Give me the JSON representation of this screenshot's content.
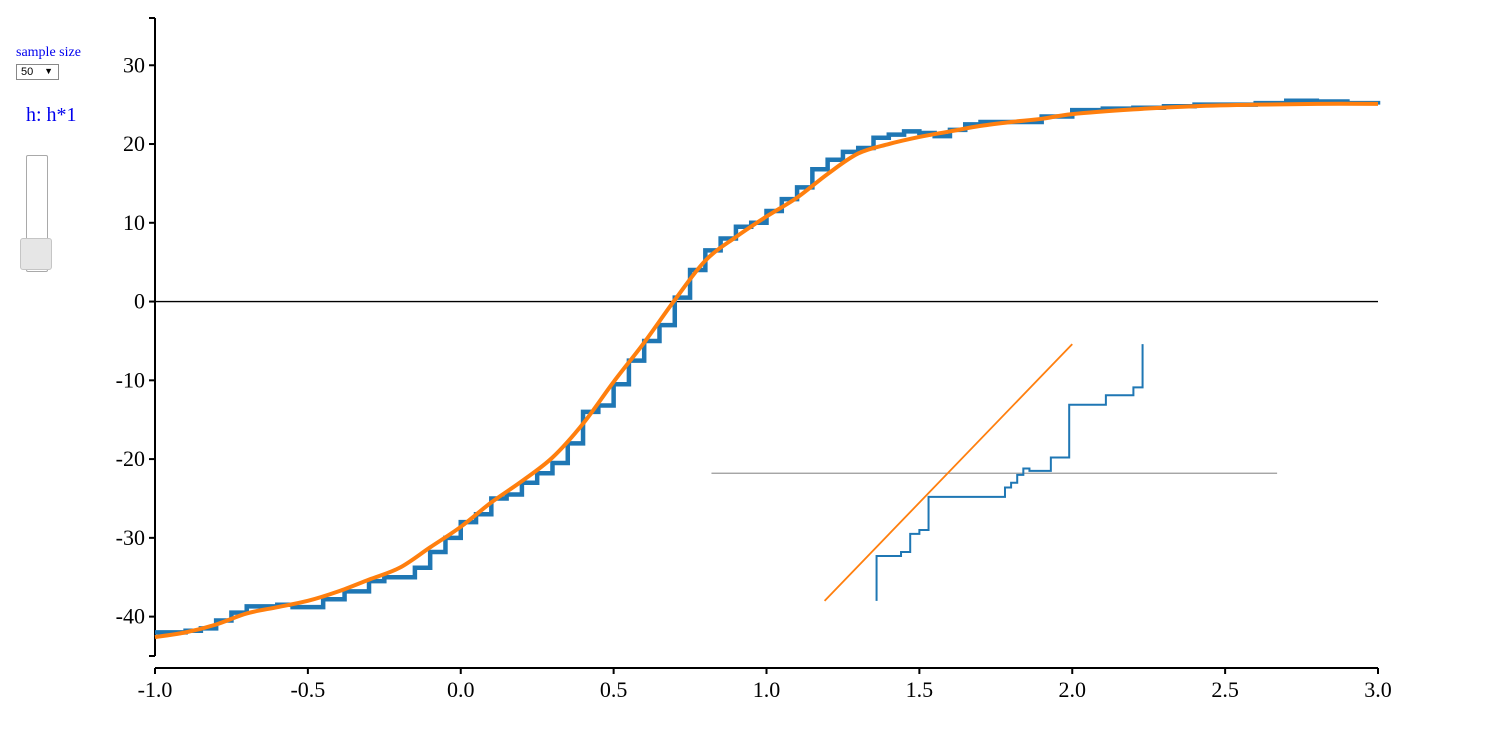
{
  "controls": {
    "sample_size_label": "sample size",
    "sample_size_value": "50",
    "sample_size_caret": "▼",
    "bandwidth_label": "h: h*1",
    "bandwidth_slider_level": 0.0
  },
  "chart_data": {
    "type": "line",
    "xlim": [
      -1.0,
      3.0
    ],
    "ylim": [
      -45,
      36
    ],
    "x_ticks": [
      "-1.0",
      "-0.5",
      "0.0",
      "0.5",
      "1.0",
      "1.5",
      "2.0",
      "2.5",
      "3.0"
    ],
    "y_ticks": [
      "30",
      "20",
      "10",
      "0",
      "-10",
      "-20",
      "-30",
      "-40"
    ],
    "zero_line": true,
    "grid": false,
    "colors": {
      "step": "#1f77b4",
      "smooth": "#ff7f0e",
      "axis": "#000000",
      "inset_baseline": "#999999"
    },
    "series": [
      {
        "kind": "step",
        "x": [
          -1.0,
          -0.9,
          -0.85,
          -0.8,
          -0.75,
          -0.7,
          -0.6,
          -0.55,
          -0.45,
          -0.38,
          -0.3,
          -0.25,
          -0.15,
          -0.1,
          -0.05,
          0.0,
          0.05,
          0.1,
          0.15,
          0.2,
          0.25,
          0.3,
          0.35,
          0.4,
          0.45,
          0.5,
          0.55,
          0.6,
          0.65,
          0.7,
          0.75,
          0.8,
          0.85,
          0.9,
          0.95,
          1.0,
          1.05,
          1.1,
          1.15,
          1.2,
          1.25,
          1.3,
          1.35,
          1.4,
          1.45,
          1.5,
          1.55,
          1.6,
          1.65,
          1.7,
          1.75,
          1.8,
          1.9,
          2.0,
          2.1,
          2.2,
          2.3,
          2.4,
          2.5,
          2.6,
          2.7,
          2.8,
          2.9,
          3.0
        ],
        "y": [
          -42.0,
          -41.8,
          -41.5,
          -40.5,
          -39.5,
          -38.7,
          -38.5,
          -38.8,
          -37.8,
          -36.8,
          -35.5,
          -35.0,
          -33.8,
          -31.8,
          -30.0,
          -28.0,
          -27.0,
          -25.0,
          -24.5,
          -23.0,
          -21.8,
          -20.5,
          -18.0,
          -14.0,
          -13.2,
          -10.5,
          -7.5,
          -5.0,
          -3.0,
          0.5,
          4.0,
          6.5,
          8.0,
          9.5,
          10.0,
          11.5,
          13.0,
          14.5,
          16.8,
          18.0,
          19.0,
          19.5,
          20.8,
          21.2,
          21.6,
          21.4,
          21.0,
          21.8,
          22.5,
          22.8,
          22.8,
          22.8,
          23.5,
          24.3,
          24.5,
          24.6,
          24.8,
          25.0,
          25.0,
          25.2,
          25.5,
          25.4,
          25.2,
          25.0
        ]
      },
      {
        "kind": "smooth",
        "x": [
          -1.0,
          -0.9,
          -0.8,
          -0.7,
          -0.6,
          -0.5,
          -0.4,
          -0.3,
          -0.2,
          -0.1,
          0.0,
          0.1,
          0.2,
          0.3,
          0.4,
          0.5,
          0.6,
          0.7,
          0.8,
          0.9,
          1.0,
          1.1,
          1.2,
          1.3,
          1.4,
          1.5,
          1.6,
          1.7,
          1.8,
          1.9,
          2.0,
          2.2,
          2.4,
          2.6,
          2.8,
          3.0
        ],
        "y": [
          -42.6,
          -42.0,
          -41.0,
          -39.6,
          -38.8,
          -38.0,
          -36.8,
          -35.3,
          -33.8,
          -31.2,
          -28.6,
          -25.5,
          -22.8,
          -19.8,
          -15.5,
          -10.2,
          -5.2,
          0.2,
          5.2,
          8.2,
          10.8,
          13.2,
          16.2,
          18.8,
          20.0,
          20.9,
          21.6,
          22.3,
          22.8,
          23.2,
          23.8,
          24.4,
          24.8,
          25.0,
          25.1,
          25.1
        ]
      }
    ],
    "inset": {
      "baseline": true,
      "step_x": [
        1.36,
        1.36,
        1.44,
        1.47,
        1.5,
        1.53,
        1.78,
        1.8,
        1.82,
        1.84,
        1.86,
        1.93,
        1.99,
        2.11,
        2.2,
        2.23
      ],
      "step_y": [
        -38.0,
        -32.3,
        -31.8,
        -29.5,
        -29.0,
        -24.8,
        -23.6,
        -23.0,
        -22.0,
        -21.2,
        -21.5,
        -19.8,
        -13.1,
        -11.9,
        -10.9,
        -5.4
      ],
      "smooth_x": [
        1.19,
        2.0
      ],
      "smooth_y": [
        -38.0,
        -5.4
      ]
    }
  }
}
